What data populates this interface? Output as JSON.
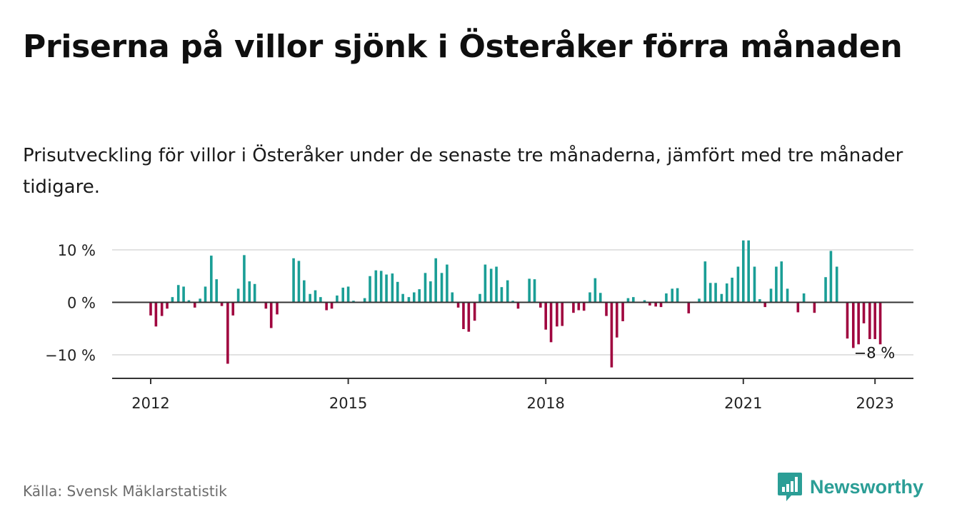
{
  "title": "Priserna på villor sjönk i Österåker förra månaden",
  "subtitle": "Prisutveckling för villor i Österåker under de senaste tre månaderna, jämfört med tre månader tidigare.",
  "source": "Källa: Svensk Mäklarstatistik",
  "brand": {
    "name": "Newsworthy",
    "icon": "newsworthy-logo-icon",
    "color": "#2b9e96"
  },
  "colors": {
    "positive": "#1a9e96",
    "negative": "#a0063f",
    "grid": "#d9d9d9",
    "zero_line": "#333333"
  },
  "chart_data": {
    "type": "bar",
    "title": "",
    "xlabel": "",
    "ylabel": "",
    "ylim": [
      -14,
      12.5
    ],
    "y_ticks": [
      {
        "value": 10,
        "label": "10 %"
      },
      {
        "value": 0,
        "label": "0 %"
      },
      {
        "value": -10,
        "label": "−10 %"
      }
    ],
    "x_ticks": [
      {
        "value": 2012,
        "label": "2012"
      },
      {
        "value": 2015,
        "label": "2015"
      },
      {
        "value": 2018,
        "label": "2018"
      },
      {
        "value": 2021,
        "label": "2021"
      },
      {
        "value": 2023,
        "label": "2023"
      }
    ],
    "x_range": [
      2011.42,
      2023.58
    ],
    "grid": true,
    "end_label": {
      "text": "−8 %",
      "x": 2023.0,
      "value": -8
    },
    "series": [
      {
        "values": [
          {
            "x": 2012.0,
            "y": -2.5
          },
          {
            "x": 2012.08,
            "y": -4.6
          },
          {
            "x": 2012.17,
            "y": -2.6
          },
          {
            "x": 2012.25,
            "y": -1.2
          },
          {
            "x": 2012.33,
            "y": 1.0
          },
          {
            "x": 2012.42,
            "y": 3.3
          },
          {
            "x": 2012.5,
            "y": 3.0
          },
          {
            "x": 2012.58,
            "y": 0.4
          },
          {
            "x": 2012.67,
            "y": -1.0
          },
          {
            "x": 2012.75,
            "y": 0.7
          },
          {
            "x": 2012.83,
            "y": 3.0
          },
          {
            "x": 2012.92,
            "y": 8.9
          },
          {
            "x": 2013.0,
            "y": 4.4
          },
          {
            "x": 2013.08,
            "y": -0.7
          },
          {
            "x": 2013.17,
            "y": -11.7
          },
          {
            "x": 2013.25,
            "y": -2.5
          },
          {
            "x": 2013.33,
            "y": 2.6
          },
          {
            "x": 2013.42,
            "y": 9.0
          },
          {
            "x": 2013.5,
            "y": 4.0
          },
          {
            "x": 2013.58,
            "y": 3.5
          },
          {
            "x": 2013.75,
            "y": -1.2
          },
          {
            "x": 2013.83,
            "y": -4.9
          },
          {
            "x": 2013.92,
            "y": -2.3
          },
          {
            "x": 2014.17,
            "y": 8.4
          },
          {
            "x": 2014.25,
            "y": 7.9
          },
          {
            "x": 2014.33,
            "y": 4.2
          },
          {
            "x": 2014.42,
            "y": 1.6
          },
          {
            "x": 2014.5,
            "y": 2.3
          },
          {
            "x": 2014.58,
            "y": 1.0
          },
          {
            "x": 2014.67,
            "y": -1.5
          },
          {
            "x": 2014.75,
            "y": -1.2
          },
          {
            "x": 2014.83,
            "y": 1.3
          },
          {
            "x": 2014.92,
            "y": 2.8
          },
          {
            "x": 2015.0,
            "y": 3.0
          },
          {
            "x": 2015.08,
            "y": 0.3
          },
          {
            "x": 2015.25,
            "y": 0.8
          },
          {
            "x": 2015.33,
            "y": 5.0
          },
          {
            "x": 2015.42,
            "y": 6.1
          },
          {
            "x": 2015.5,
            "y": 6.0
          },
          {
            "x": 2015.58,
            "y": 5.3
          },
          {
            "x": 2015.67,
            "y": 5.5
          },
          {
            "x": 2015.75,
            "y": 3.9
          },
          {
            "x": 2015.83,
            "y": 1.6
          },
          {
            "x": 2015.92,
            "y": 1.0
          },
          {
            "x": 2016.0,
            "y": 1.9
          },
          {
            "x": 2016.08,
            "y": 2.5
          },
          {
            "x": 2016.17,
            "y": 5.6
          },
          {
            "x": 2016.25,
            "y": 4.0
          },
          {
            "x": 2016.33,
            "y": 8.4
          },
          {
            "x": 2016.42,
            "y": 5.6
          },
          {
            "x": 2016.5,
            "y": 7.2
          },
          {
            "x": 2016.58,
            "y": 1.9
          },
          {
            "x": 2016.67,
            "y": -1.0
          },
          {
            "x": 2016.75,
            "y": -5.1
          },
          {
            "x": 2016.83,
            "y": -5.6
          },
          {
            "x": 2016.92,
            "y": -3.5
          },
          {
            "x": 2017.0,
            "y": 1.6
          },
          {
            "x": 2017.08,
            "y": 7.2
          },
          {
            "x": 2017.17,
            "y": 6.4
          },
          {
            "x": 2017.25,
            "y": 6.8
          },
          {
            "x": 2017.33,
            "y": 2.9
          },
          {
            "x": 2017.42,
            "y": 4.2
          },
          {
            "x": 2017.5,
            "y": 0.3
          },
          {
            "x": 2017.58,
            "y": -1.2
          },
          {
            "x": 2017.75,
            "y": 4.5
          },
          {
            "x": 2017.83,
            "y": 4.4
          },
          {
            "x": 2017.92,
            "y": -1.0
          },
          {
            "x": 2018.0,
            "y": -5.2
          },
          {
            "x": 2018.08,
            "y": -7.6
          },
          {
            "x": 2018.17,
            "y": -4.6
          },
          {
            "x": 2018.25,
            "y": -4.5
          },
          {
            "x": 2018.42,
            "y": -2.0
          },
          {
            "x": 2018.5,
            "y": -1.5
          },
          {
            "x": 2018.58,
            "y": -1.6
          },
          {
            "x": 2018.67,
            "y": 1.9
          },
          {
            "x": 2018.75,
            "y": 4.6
          },
          {
            "x": 2018.83,
            "y": 1.8
          },
          {
            "x": 2018.92,
            "y": -2.6
          },
          {
            "x": 2019.0,
            "y": -12.4
          },
          {
            "x": 2019.08,
            "y": -6.7
          },
          {
            "x": 2019.17,
            "y": -3.6
          },
          {
            "x": 2019.25,
            "y": 0.8
          },
          {
            "x": 2019.33,
            "y": 1.0
          },
          {
            "x": 2019.5,
            "y": 0.4
          },
          {
            "x": 2019.58,
            "y": -0.6
          },
          {
            "x": 2019.67,
            "y": -0.8
          },
          {
            "x": 2019.75,
            "y": -0.9
          },
          {
            "x": 2019.83,
            "y": 1.7
          },
          {
            "x": 2019.92,
            "y": 2.6
          },
          {
            "x": 2020.0,
            "y": 2.7
          },
          {
            "x": 2020.17,
            "y": -2.1
          },
          {
            "x": 2020.33,
            "y": 0.7
          },
          {
            "x": 2020.42,
            "y": 7.8
          },
          {
            "x": 2020.5,
            "y": 3.7
          },
          {
            "x": 2020.58,
            "y": 3.7
          },
          {
            "x": 2020.67,
            "y": 1.6
          },
          {
            "x": 2020.75,
            "y": 3.6
          },
          {
            "x": 2020.83,
            "y": 4.7
          },
          {
            "x": 2020.92,
            "y": 6.8
          },
          {
            "x": 2021.0,
            "y": 11.8
          },
          {
            "x": 2021.08,
            "y": 11.8
          },
          {
            "x": 2021.17,
            "y": 6.8
          },
          {
            "x": 2021.25,
            "y": 0.6
          },
          {
            "x": 2021.33,
            "y": -0.9
          },
          {
            "x": 2021.42,
            "y": 2.6
          },
          {
            "x": 2021.5,
            "y": 6.8
          },
          {
            "x": 2021.58,
            "y": 7.8
          },
          {
            "x": 2021.67,
            "y": 2.6
          },
          {
            "x": 2021.83,
            "y": -1.9
          },
          {
            "x": 2021.92,
            "y": 1.7
          },
          {
            "x": 2022.08,
            "y": -2.0
          },
          {
            "x": 2022.25,
            "y": 4.8
          },
          {
            "x": 2022.33,
            "y": 9.8
          },
          {
            "x": 2022.42,
            "y": 6.8
          },
          {
            "x": 2022.58,
            "y": -6.9
          },
          {
            "x": 2022.67,
            "y": -8.7
          },
          {
            "x": 2022.75,
            "y": -8.0
          },
          {
            "x": 2022.83,
            "y": -4.0
          },
          {
            "x": 2022.92,
            "y": -7.0
          },
          {
            "x": 2023.0,
            "y": -7.0
          },
          {
            "x": 2023.08,
            "y": -8.0
          }
        ]
      }
    ]
  }
}
